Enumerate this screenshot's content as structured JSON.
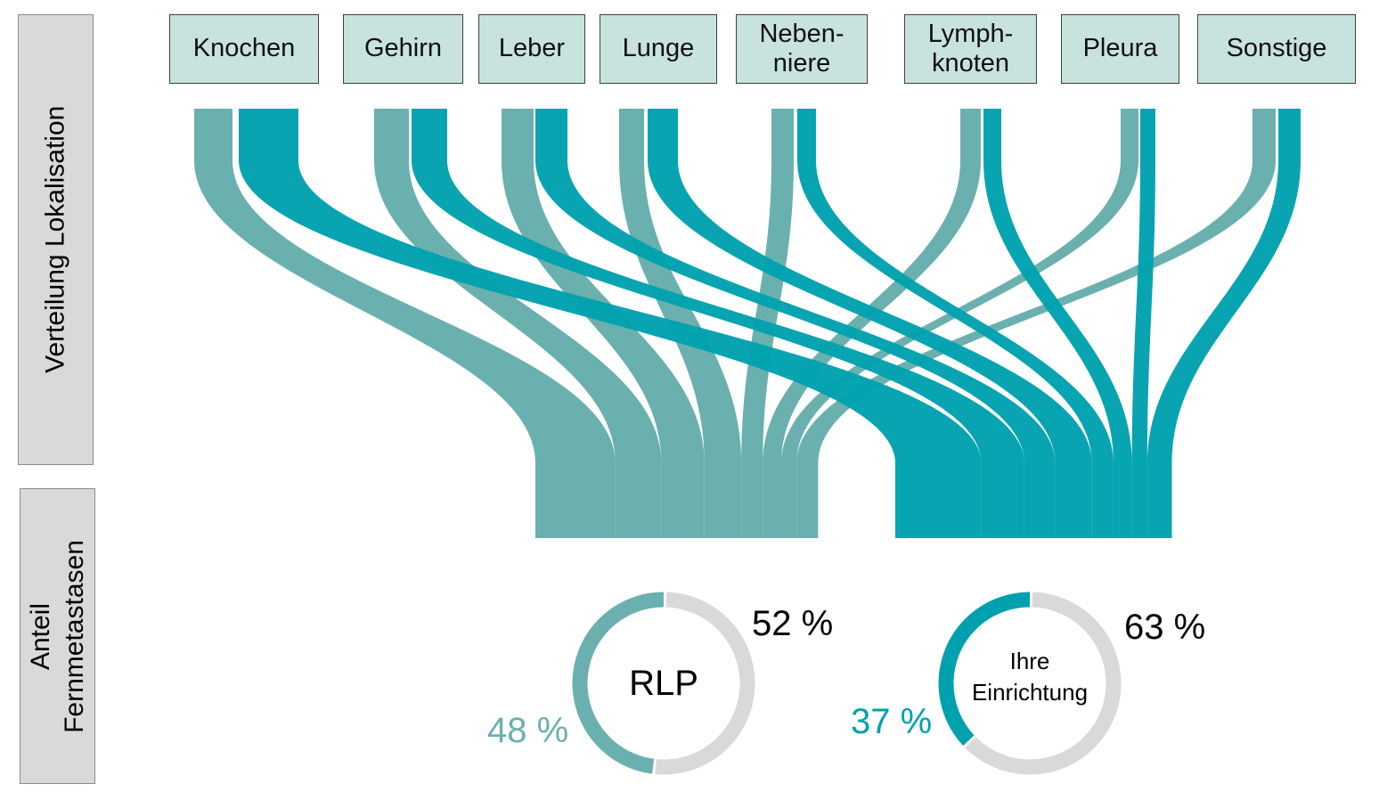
{
  "side_labels": {
    "top": "Verteilung Lokalisation",
    "bottom_line1": "Anteil",
    "bottom_line2": "Fernmetastasen"
  },
  "colors": {
    "rlp": "#6ab0ae",
    "facility": "#00a1ae",
    "remainder": "#d9d9d9",
    "category_fill": "#c8e3dd"
  },
  "chart_data": {
    "type": "sankey",
    "categories": [
      "Knochen",
      "Gehirn",
      "Leber",
      "Lunge",
      "Neben-\nniere",
      "Lymph-\nknoten",
      "Pleura",
      "Sonstige"
    ],
    "series": [
      {
        "name": "RLP",
        "flow_share": [
          26,
          15,
          14,
          12,
          7,
          6,
          5,
          7
        ]
      },
      {
        "name": "Ihre Einrichtung",
        "flow_share": [
          28,
          14,
          10,
          12,
          7,
          6,
          5,
          8
        ]
      }
    ],
    "donuts": [
      {
        "center_label": "RLP",
        "share_percent": 48,
        "share_label": "48 %",
        "remainder_label": "52 %"
      },
      {
        "center_label": "Ihre\nEinrichtung",
        "share_percent": 37,
        "share_label": "37 %",
        "remainder_label": "63 %"
      }
    ]
  }
}
